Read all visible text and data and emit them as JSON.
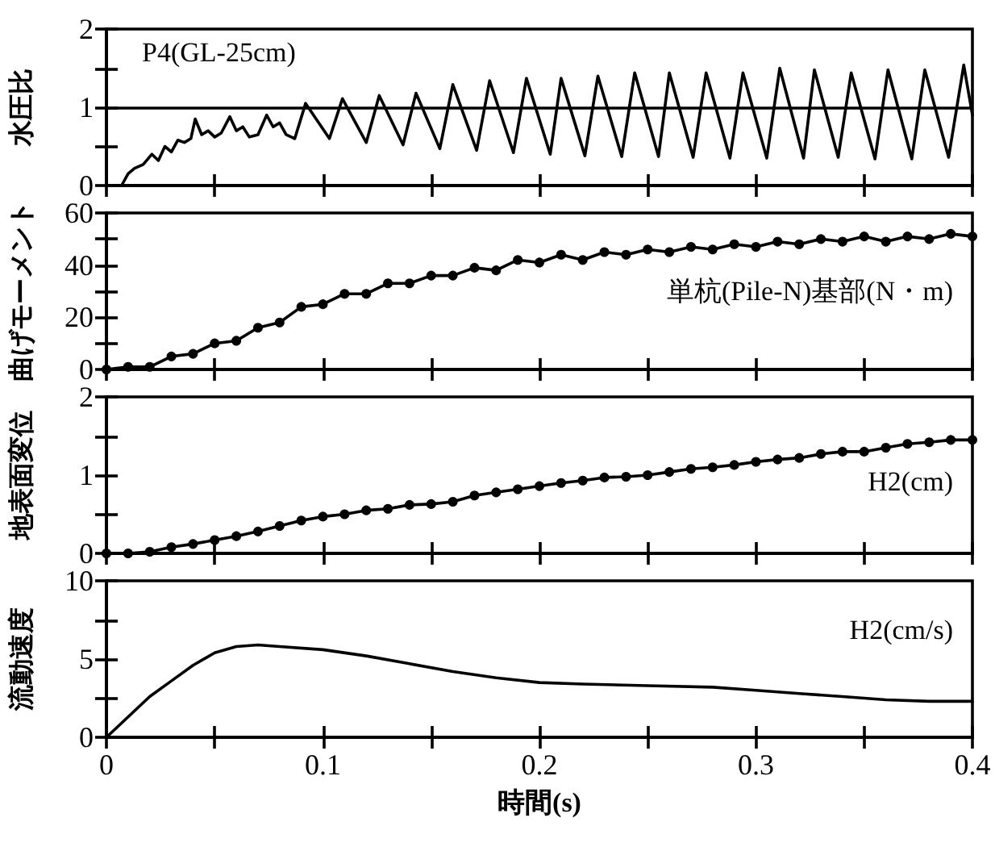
{
  "chart_data": [
    {
      "type": "line",
      "ylabel": "水圧比",
      "annotations": [
        "P4(GL-25cm)"
      ],
      "tick_labels": "y",
      "marker": "none",
      "line_style": "solid",
      "grid": false,
      "xlim": [
        0,
        0.4
      ],
      "xticks": [
        0,
        {
          "value": 0.05,
          "label": null
        },
        0.1,
        {
          "value": 0.15,
          "label": null
        },
        0.2,
        {
          "value": 0.25,
          "label": null
        },
        0.3,
        {
          "value": 0.35,
          "label": null
        },
        0.4
      ],
      "ylim": [
        0,
        2
      ],
      "yticks": [
        0,
        {
          "value": 0.5,
          "label": null
        },
        1,
        {
          "value": 1.5,
          "label": null
        },
        2
      ],
      "ref_lines": [
        {
          "axis": "y",
          "value": 1,
          "label": null,
          "color": "#000000",
          "line_style": "solid"
        }
      ],
      "series": [
        {
          "color": "#000000",
          "x": [
            0.007,
            0.01,
            0.013,
            0.017,
            0.021,
            0.024,
            0.027,
            0.03,
            0.033,
            0.036,
            0.039,
            0.041,
            0.044,
            0.047,
            0.05,
            0.053,
            0.057,
            0.06,
            0.063,
            0.066,
            0.07,
            0.074,
            0.077,
            0.08,
            0.083,
            0.087,
            0.092,
            0.103,
            0.109,
            0.12,
            0.126,
            0.137,
            0.143,
            0.154,
            0.16,
            0.171,
            0.177,
            0.188,
            0.194,
            0.205,
            0.21,
            0.221,
            0.227,
            0.238,
            0.244,
            0.255,
            0.26,
            0.271,
            0.277,
            0.288,
            0.294,
            0.305,
            0.311,
            0.322,
            0.327,
            0.338,
            0.344,
            0.355,
            0.361,
            0.372,
            0.378,
            0.389,
            0.396,
            0.4
          ],
          "values": [
            0,
            0.15,
            0.22,
            0.27,
            0.4,
            0.32,
            0.5,
            0.43,
            0.58,
            0.55,
            0.6,
            0.85,
            0.65,
            0.7,
            0.62,
            0.67,
            0.88,
            0.7,
            0.75,
            0.62,
            0.65,
            0.9,
            0.75,
            0.8,
            0.65,
            0.6,
            1.05,
            0.6,
            1.11,
            0.55,
            1.15,
            0.52,
            1.18,
            0.47,
            1.29,
            0.45,
            1.34,
            0.42,
            1.37,
            0.4,
            1.37,
            0.38,
            1.4,
            0.37,
            1.44,
            0.37,
            1.44,
            0.36,
            1.44,
            0.35,
            1.44,
            0.35,
            1.5,
            0.35,
            1.48,
            0.36,
            1.44,
            0.34,
            1.48,
            0.34,
            1.48,
            0.36,
            1.54,
            0.9
          ]
        }
      ]
    },
    {
      "type": "line",
      "ylabel": "曲げモーメント",
      "annotations": [
        "単杭(Pile-N)基部(N・m)"
      ],
      "tick_labels": "y",
      "marker": "circle",
      "line_style": "solid",
      "grid": false,
      "xlim": [
        0,
        0.4
      ],
      "xticks": [
        0,
        {
          "value": 0.05,
          "label": null
        },
        0.1,
        {
          "value": 0.15,
          "label": null
        },
        0.2,
        {
          "value": 0.25,
          "label": null
        },
        0.3,
        {
          "value": 0.35,
          "label": null
        },
        0.4
      ],
      "ylim": [
        0,
        60
      ],
      "yticks": [
        0,
        {
          "value": 10,
          "label": null
        },
        20,
        {
          "value": 30,
          "label": null
        },
        40,
        {
          "value": 50,
          "label": null
        },
        60
      ],
      "series": [
        {
          "color": "#000000",
          "x": [
            0,
            0.01,
            0.02,
            0.03,
            0.04,
            0.05,
            0.06,
            0.07,
            0.08,
            0.09,
            0.1,
            0.11,
            0.12,
            0.13,
            0.14,
            0.15,
            0.16,
            0.17,
            0.18,
            0.19,
            0.2,
            0.21,
            0.22,
            0.23,
            0.24,
            0.25,
            0.26,
            0.27,
            0.28,
            0.29,
            0.3,
            0.31,
            0.32,
            0.33,
            0.34,
            0.35,
            0.36,
            0.37,
            0.38,
            0.39,
            0.4
          ],
          "values": [
            0,
            1,
            1,
            5,
            6,
            10,
            11,
            16,
            18,
            24,
            25,
            29,
            29,
            33,
            33,
            36,
            36,
            39,
            38,
            42,
            41,
            44,
            42,
            45,
            44,
            46,
            45,
            47,
            46,
            48,
            47,
            49,
            48,
            50,
            49,
            51,
            49,
            51,
            50,
            52,
            51
          ]
        }
      ]
    },
    {
      "type": "line",
      "ylabel": "地表面変位",
      "annotations": [
        "H2(cm)"
      ],
      "tick_labels": "y",
      "marker": "circle",
      "line_style": "solid",
      "grid": false,
      "xlim": [
        0,
        0.4
      ],
      "xticks": [
        0,
        {
          "value": 0.05,
          "label": null
        },
        0.1,
        {
          "value": 0.15,
          "label": null
        },
        0.2,
        {
          "value": 0.25,
          "label": null
        },
        0.3,
        {
          "value": 0.35,
          "label": null
        },
        0.4
      ],
      "ylim": [
        0,
        2
      ],
      "yticks": [
        0,
        {
          "value": 0.5,
          "label": null
        },
        1,
        {
          "value": 1.5,
          "label": null
        },
        2
      ],
      "series": [
        {
          "color": "#000000",
          "x": [
            0,
            0.01,
            0.02,
            0.03,
            0.04,
            0.05,
            0.06,
            0.07,
            0.08,
            0.09,
            0.1,
            0.11,
            0.12,
            0.13,
            0.14,
            0.15,
            0.16,
            0.17,
            0.18,
            0.19,
            0.2,
            0.21,
            0.22,
            0.23,
            0.24,
            0.25,
            0.26,
            0.27,
            0.28,
            0.29,
            0.3,
            0.31,
            0.32,
            0.33,
            0.34,
            0.35,
            0.36,
            0.37,
            0.38,
            0.39,
            0.4
          ],
          "values": [
            0,
            0,
            0.02,
            0.08,
            0.12,
            0.17,
            0.22,
            0.28,
            0.35,
            0.42,
            0.47,
            0.5,
            0.55,
            0.57,
            0.62,
            0.63,
            0.66,
            0.74,
            0.78,
            0.82,
            0.86,
            0.9,
            0.93,
            0.97,
            0.98,
            1.0,
            1.04,
            1.08,
            1.1,
            1.13,
            1.17,
            1.2,
            1.22,
            1.27,
            1.3,
            1.3,
            1.35,
            1.4,
            1.42,
            1.45,
            1.45
          ]
        }
      ]
    },
    {
      "type": "line",
      "ylabel": "流動速度",
      "xlabel": "時間(s)",
      "annotations": [
        "H2(cm/s)"
      ],
      "marker": "none",
      "line_style": "solid",
      "grid": false,
      "xlim": [
        0,
        0.4
      ],
      "xticks": [
        0,
        {
          "value": 0.05,
          "label": null
        },
        0.1,
        {
          "value": 0.15,
          "label": null
        },
        0.2,
        {
          "value": 0.25,
          "label": null
        },
        0.3,
        {
          "value": 0.35,
          "label": null
        },
        0.4
      ],
      "ylim": [
        0,
        10
      ],
      "yticks": [
        0,
        {
          "value": 2.5,
          "label": null
        },
        5,
        {
          "value": 7.5,
          "label": null
        },
        10
      ],
      "series": [
        {
          "color": "#000000",
          "x": [
            0,
            0.02,
            0.03,
            0.04,
            0.05,
            0.06,
            0.07,
            0.08,
            0.1,
            0.12,
            0.14,
            0.16,
            0.18,
            0.2,
            0.22,
            0.25,
            0.28,
            0.3,
            0.32,
            0.34,
            0.36,
            0.38,
            0.4
          ],
          "values": [
            0,
            2.6,
            3.6,
            4.6,
            5.4,
            5.8,
            5.9,
            5.8,
            5.6,
            5.2,
            4.7,
            4.2,
            3.8,
            3.5,
            3.4,
            3.3,
            3.2,
            3.0,
            2.8,
            2.6,
            2.4,
            2.3,
            2.3
          ]
        }
      ]
    }
  ]
}
